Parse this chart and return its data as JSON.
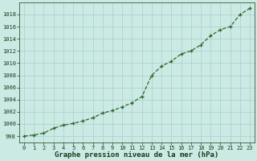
{
  "x": [
    0,
    1,
    2,
    3,
    4,
    5,
    6,
    7,
    8,
    9,
    10,
    11,
    12,
    13,
    14,
    15,
    16,
    17,
    18,
    19,
    20,
    21,
    22,
    23
  ],
  "y": [
    998.0,
    998.2,
    998.5,
    999.3,
    999.8,
    1000.1,
    1000.5,
    1001.0,
    1001.8,
    1002.2,
    1002.8,
    1003.5,
    1004.5,
    1008.0,
    1009.5,
    1010.3,
    1011.5,
    1012.0,
    1013.0,
    1014.5,
    1015.5,
    1016.0,
    1018.0,
    1019.0
  ],
  "ylim_min": 997,
  "ylim_max": 1020,
  "xlim_min": -0.5,
  "xlim_max": 23.5,
  "yticks": [
    998,
    1000,
    1002,
    1004,
    1006,
    1008,
    1010,
    1012,
    1014,
    1016,
    1018
  ],
  "xticks": [
    0,
    1,
    2,
    3,
    4,
    5,
    6,
    7,
    8,
    9,
    10,
    11,
    12,
    13,
    14,
    15,
    16,
    17,
    18,
    19,
    20,
    21,
    22,
    23
  ],
  "line_color": "#2d6a2d",
  "marker_color": "#2d6a2d",
  "bg_color": "#cceae4",
  "grid_color": "#aacccc",
  "xlabel": "Graphe pression niveau de la mer (hPa)",
  "xlabel_color": "#1a3a1a",
  "tick_color": "#1a3a1a",
  "tick_fontsize": 5,
  "xlabel_fontsize": 6.5,
  "linewidth": 0.9,
  "markersize": 3.5,
  "markeredgewidth": 1.0
}
